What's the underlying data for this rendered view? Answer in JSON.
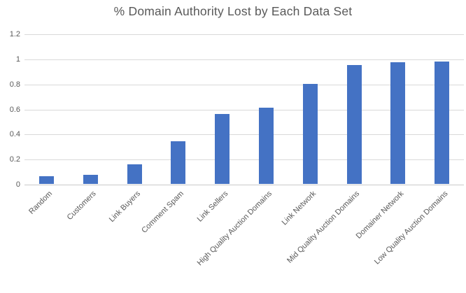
{
  "chart_data": {
    "type": "bar",
    "title": "% Domain Authority Lost by Each Data Set",
    "categories": [
      "Random",
      "Customers",
      "Link Buyers",
      "Comment Spam",
      "Link Sellers",
      "High Quality Auction Domains",
      "Link Network",
      "Mid Quality Auction Domains",
      "Domainer Network",
      "Low Quality Auction Domains"
    ],
    "values": [
      0.06,
      0.07,
      0.155,
      0.34,
      0.56,
      0.61,
      0.8,
      0.95,
      0.97,
      0.975
    ],
    "xlabel": "",
    "ylabel": "",
    "ylim": [
      0,
      1.2
    ],
    "ytick_interval": 0.2,
    "ytick_labels": [
      "0",
      "0.2",
      "0.4",
      "0.6",
      "0.8",
      "1",
      "1.2"
    ],
    "grid": true,
    "legend": false,
    "colors": {
      "bar": "#4472C4",
      "gridline": "#D9D9D9",
      "axis_line": "#C9C9C9",
      "text": "#595959",
      "background": "#FFFFFF"
    }
  }
}
